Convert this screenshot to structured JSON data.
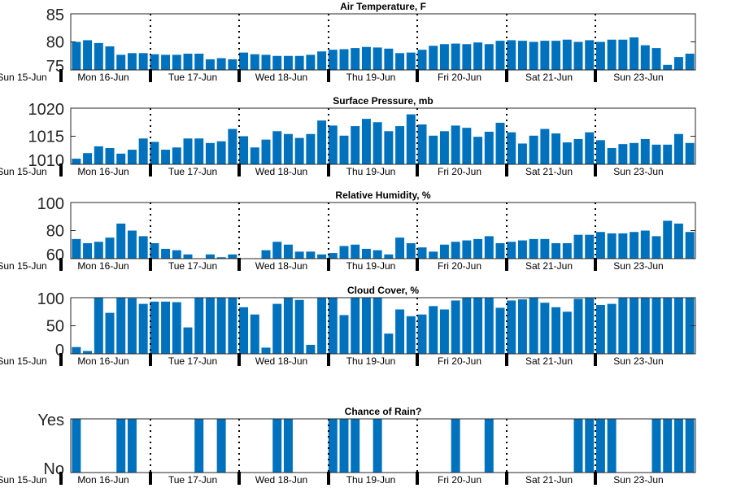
{
  "x_labels": [
    "Sun 15-Jun",
    "Mon 16-Jun",
    "Tue 17-Jun",
    "Wed 18-Jun",
    "Thu 19-Jun",
    "Fri 20-Jun",
    "Sat 21-Jun",
    "Sun 23-Jun"
  ],
  "bar_color": "#0072bd",
  "chart_data": [
    {
      "type": "bar",
      "title": "Air Temperature, F",
      "ylim": [
        75,
        85
      ],
      "yticks": [
        75,
        80,
        85
      ],
      "values": [
        80,
        80.3,
        79.8,
        79.2,
        77.7,
        78,
        78,
        77.8,
        77.7,
        77.7,
        77.9,
        77.9,
        76.9,
        77.1,
        76.9,
        78.1,
        77.8,
        77.7,
        77.5,
        77.5,
        77.5,
        77.7,
        78.3,
        78.6,
        78.7,
        78.9,
        79.1,
        79,
        78.8,
        78,
        78.1,
        78.6,
        79.3,
        79.6,
        79.7,
        79.6,
        79.9,
        79.6,
        80.2,
        80.3,
        80.2,
        80,
        80.2,
        80.2,
        80.4,
        80,
        80.3,
        80,
        80.4,
        80.4,
        80.8,
        79.4,
        78.9,
        75.9,
        77.3,
        77.9
      ]
    },
    {
      "type": "bar",
      "title": "Surface Pressure, mb",
      "ylim": [
        1010,
        1020
      ],
      "yticks": [
        1010,
        1015,
        1020
      ],
      "values": [
        1011,
        1012,
        1013.2,
        1012.9,
        1011.9,
        1012.6,
        1014.6,
        1014,
        1012.6,
        1013,
        1014.6,
        1014.6,
        1013.8,
        1014.1,
        1016.3,
        1015,
        1013,
        1014.4,
        1015.9,
        1015.4,
        1014.7,
        1015.4,
        1017.8,
        1016.9,
        1015.1,
        1016.8,
        1018.1,
        1017.5,
        1015.9,
        1016.8,
        1018.9,
        1017.1,
        1015.1,
        1015.9,
        1016.9,
        1016.5,
        1014.9,
        1015.8,
        1017.4,
        1015.7,
        1013.7,
        1015.1,
        1016.3,
        1015.5,
        1013.9,
        1014.5,
        1015.7,
        1014.3,
        1012.9,
        1013.6,
        1013.8,
        1014.5,
        1013.5,
        1013.5,
        1015.4,
        1013.8
      ]
    },
    {
      "type": "bar",
      "title": "Relative Humidity, %",
      "ylim": [
        60,
        100
      ],
      "yticks": [
        60,
        80,
        100
      ],
      "values": [
        74,
        71,
        72,
        75,
        85,
        80,
        76,
        71,
        67,
        66,
        63,
        60,
        63,
        61,
        63,
        60,
        60,
        66,
        72,
        70,
        65,
        65,
        63,
        64,
        69,
        70,
        67,
        66,
        63,
        75,
        71,
        68,
        65,
        70,
        72,
        73,
        74,
        76,
        71,
        72,
        73,
        74,
        74,
        71,
        71,
        77,
        77,
        79,
        78,
        78,
        79,
        80,
        76,
        87,
        85,
        79
      ]
    },
    {
      "type": "bar",
      "title": "Cloud Cover, %",
      "ylim": [
        0,
        100
      ],
      "yticks": [
        0,
        50,
        100
      ],
      "values": [
        12,
        5,
        100,
        73,
        100,
        99,
        89,
        93,
        93,
        92,
        47,
        100,
        100,
        100,
        100,
        83,
        70,
        11,
        89,
        100,
        96,
        16,
        100,
        100,
        69,
        100,
        100,
        100,
        36,
        79,
        67,
        70,
        85,
        79,
        95,
        100,
        100,
        100,
        82,
        95,
        97,
        100,
        91,
        83,
        75,
        98,
        100,
        87,
        89,
        100,
        100,
        100,
        100,
        100,
        100,
        100
      ]
    },
    {
      "type": "bar",
      "title": "Chance of Rain?",
      "ylim": [
        0,
        1
      ],
      "yticks": [
        0,
        1
      ],
      "ytick_labels": [
        "No",
        "Yes"
      ],
      "values": [
        1,
        0,
        0,
        0,
        1,
        1,
        0,
        0,
        0,
        0,
        0,
        1,
        0,
        1,
        0,
        0,
        0,
        0,
        1,
        1,
        0,
        0,
        0,
        1,
        1,
        1,
        0,
        1,
        0,
        0,
        0,
        0,
        0,
        0,
        1,
        0,
        0,
        1,
        0,
        0,
        0,
        0,
        0,
        0,
        0,
        1,
        1,
        1,
        1,
        0,
        0,
        0,
        1,
        1,
        1,
        1
      ]
    }
  ]
}
